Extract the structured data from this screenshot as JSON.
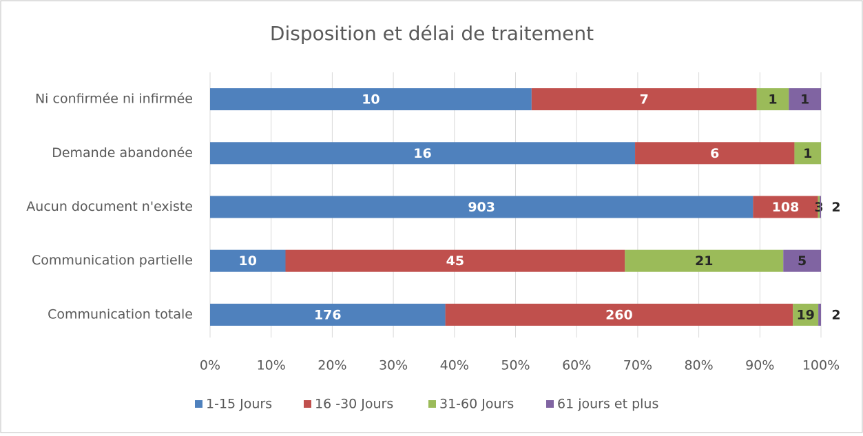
{
  "chart_data": {
    "type": "stacked-bar-100",
    "orientation": "horizontal",
    "title": "Disposition et délai de traitement",
    "categories": [
      "Ni confirmée ni infirmée",
      "Demande abandonée",
      "Aucun document n'existe",
      "Communication partielle",
      "Communication totale"
    ],
    "series": [
      {
        "name": "1-15 Jours",
        "color": "#4f81bd",
        "values": [
          10,
          16,
          903,
          10,
          176
        ]
      },
      {
        "name": "16 -30 Jours",
        "color": "#c0504d",
        "values": [
          7,
          6,
          108,
          45,
          260
        ]
      },
      {
        "name": "31-60 Jours",
        "color": "#9bbb59",
        "values": [
          1,
          1,
          3,
          21,
          19
        ]
      },
      {
        "name": "61 jours et plus",
        "color": "#8064a2",
        "values": [
          1,
          null,
          2,
          5,
          2
        ]
      }
    ],
    "xlim": [
      0,
      100
    ],
    "xticks": [
      {
        "value": 0,
        "label": "0%"
      },
      {
        "value": 10,
        "label": "10%"
      },
      {
        "value": 20,
        "label": "20%"
      },
      {
        "value": 30,
        "label": "30%"
      },
      {
        "value": 40,
        "label": "40%"
      },
      {
        "value": 50,
        "label": "50%"
      },
      {
        "value": 60,
        "label": "60%"
      },
      {
        "value": 70,
        "label": "70%"
      },
      {
        "value": 80,
        "label": "80%"
      },
      {
        "value": 90,
        "label": "90%"
      },
      {
        "value": 100,
        "label": "100%"
      }
    ],
    "grid": true,
    "legend": "bottom"
  }
}
